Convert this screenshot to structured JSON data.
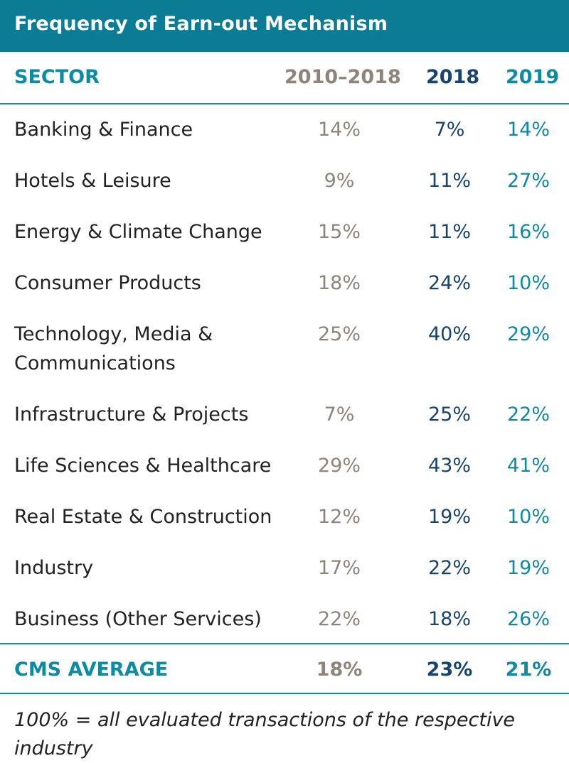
{
  "chart_data": {
    "type": "table",
    "title": "Frequency of Earn-out Mechanism",
    "columns": [
      "SECTOR",
      "2010–2018",
      "2018",
      "2019"
    ],
    "rows": [
      {
        "sector": "Banking & Finance",
        "values": [
          "14%",
          "7%",
          "14%"
        ]
      },
      {
        "sector": "Hotels & Leisure",
        "values": [
          "9%",
          "11%",
          "27%"
        ]
      },
      {
        "sector": "Energy & Climate Change",
        "values": [
          "15%",
          "11%",
          "16%"
        ]
      },
      {
        "sector": "Consumer Products",
        "values": [
          "18%",
          "24%",
          "10%"
        ]
      },
      {
        "sector": "Technology, Media & Communications",
        "values": [
          "25%",
          "40%",
          "29%"
        ]
      },
      {
        "sector": "Infrastructure & Projects",
        "values": [
          "7%",
          "25%",
          "22%"
        ]
      },
      {
        "sector": "Life Sciences & Healthcare",
        "values": [
          "29%",
          "43%",
          "41%"
        ]
      },
      {
        "sector": "Real Estate & Construction",
        "values": [
          "12%",
          "19%",
          "10%"
        ]
      },
      {
        "sector": "Industry",
        "values": [
          "17%",
          "22%",
          "19%"
        ]
      },
      {
        "sector": "Business (Other Services)",
        "values": [
          "22%",
          "18%",
          "26%"
        ]
      }
    ],
    "average": {
      "label": "CMS AVERAGE",
      "values": [
        "18%",
        "23%",
        "21%"
      ]
    },
    "footnote": "100% = all evaluated transactions of the respective industry"
  },
  "colors": {
    "title_bar": "#0b7c93",
    "teal": "#0f8aa3",
    "taupe": "#8f847a",
    "navy": "#17456f",
    "text": "#222222"
  }
}
